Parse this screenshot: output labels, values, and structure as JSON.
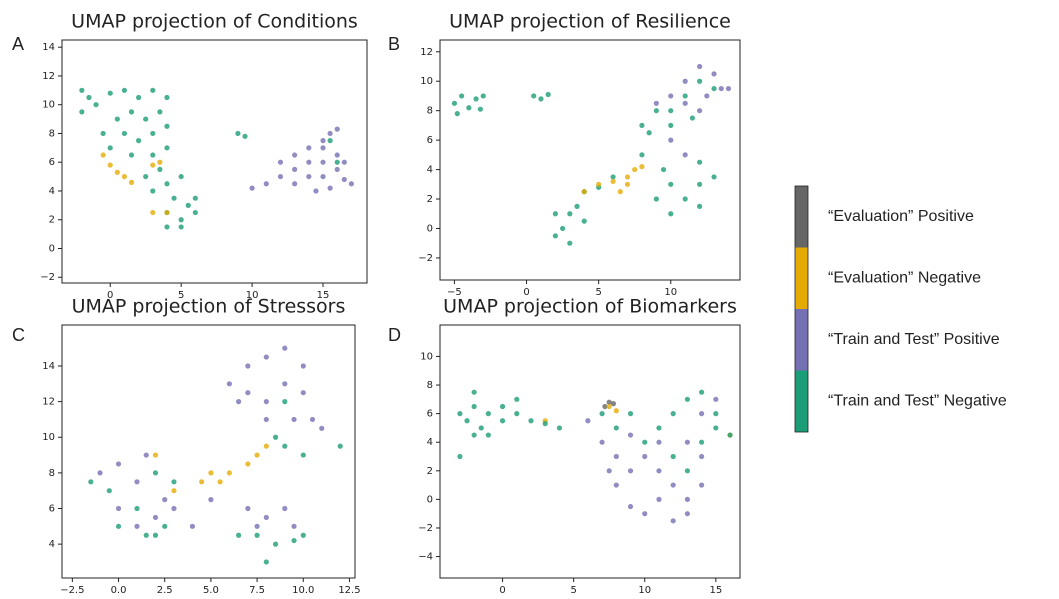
{
  "chart_data": [
    {
      "type": "scatter",
      "label": "A",
      "title": "UMAP projection of Conditions",
      "xlim": [
        -3.4,
        18.1
      ],
      "ylim": [
        -2.4,
        14.5
      ],
      "xticks": [
        0,
        5,
        10,
        15
      ],
      "yticks": [
        {
          "value": -2,
          "label": "−2"
        },
        0,
        2,
        4,
        6,
        8,
        10,
        12,
        14
      ],
      "series": [
        {
          "name": "“Train and Test” Negative",
          "color": "#1b9e77",
          "x": [
            -2,
            -1.5,
            -1,
            -2,
            0,
            1,
            2,
            3,
            4,
            0.5,
            1.5,
            2.5,
            3.5,
            -0.5,
            1,
            2,
            3,
            4,
            0,
            1.5,
            3,
            4,
            2.5,
            3.5,
            4,
            3,
            4.5,
            4,
            5,
            6,
            5.5,
            5,
            4,
            6,
            5,
            9,
            9.5,
            16,
            15.5
          ],
          "y": [
            11,
            10.5,
            10,
            9.5,
            10.8,
            11,
            10.5,
            11,
            10.5,
            9,
            9.5,
            9,
            9.5,
            8,
            8,
            7.5,
            8,
            8.5,
            7,
            6.5,
            6.5,
            7,
            5,
            5.5,
            4.5,
            4,
            3.5,
            2.5,
            2,
            2.5,
            3,
            1.5,
            1.5,
            3.5,
            5,
            8,
            7.8,
            6,
            7.5
          ]
        },
        {
          "name": "“Train and Test” Positive",
          "color": "#7570b3",
          "x": [
            10,
            11,
            12,
            12,
            13,
            13,
            14,
            14,
            14,
            15,
            15,
            15,
            15.5,
            16,
            16,
            16.5,
            16.5,
            15.5,
            14.5,
            13,
            16,
            15,
            17
          ],
          "y": [
            4.2,
            4.5,
            5,
            6,
            5.5,
            6.5,
            5,
            6,
            7,
            5,
            6,
            7,
            8,
            6.5,
            5.5,
            6,
            4.8,
            4.2,
            4,
            4.5,
            8.3,
            7.5,
            4.5
          ]
        },
        {
          "name": "“Evaluation” Negative",
          "color": "#e6ab02",
          "x": [
            -0.5,
            0,
            0.5,
            1,
            1.5,
            3,
            3.5,
            4,
            3
          ],
          "y": [
            6.5,
            5.8,
            5.3,
            5,
            4.6,
            5.8,
            6,
            2.5,
            2.5
          ]
        }
      ]
    },
    {
      "type": "scatter",
      "label": "B",
      "title": "UMAP projection of Resilience",
      "xlim": [
        -6.0,
        14.8
      ],
      "ylim": [
        -3.5,
        12.8
      ],
      "xticks": [
        {
          "value": -5,
          "label": "−5"
        },
        0,
        5,
        10
      ],
      "yticks": [
        {
          "value": -2,
          "label": "−2"
        },
        0,
        2,
        4,
        6,
        8,
        10,
        12
      ],
      "series": [
        {
          "name": "“Train and Test” Negative",
          "color": "#1b9e77",
          "x": [
            -5,
            -4.5,
            -4,
            -3.5,
            -3,
            -4.8,
            -3.2,
            0.5,
            1,
            1.5,
            2,
            2.5,
            3,
            3,
            2,
            4,
            3.5,
            4,
            5,
            6,
            8,
            8,
            8.5,
            9,
            10,
            10,
            11,
            11.5,
            12,
            13,
            9,
            10,
            11,
            12,
            10,
            12,
            13,
            9.5,
            12
          ],
          "y": [
            8.5,
            9,
            8.2,
            8.8,
            9,
            7.8,
            8.1,
            9,
            8.8,
            9.1,
            1,
            0,
            1,
            -1,
            -0.5,
            0.5,
            1.5,
            2.5,
            2.8,
            3.5,
            5,
            7,
            6.5,
            8,
            7,
            8,
            9,
            7.5,
            10,
            9.5,
            2,
            3,
            2,
            3,
            1,
            1.5,
            3.5,
            4,
            4.5
          ]
        },
        {
          "name": "“Train and Test” Positive",
          "color": "#7570b3",
          "x": [
            9,
            10,
            11,
            12,
            13,
            13.5,
            12.5,
            11,
            14,
            12,
            10,
            11
          ],
          "y": [
            8.5,
            9,
            10,
            11,
            10.5,
            9.5,
            9,
            8.5,
            9.5,
            8,
            6,
            5
          ]
        },
        {
          "name": "“Evaluation” Negative",
          "color": "#e6ab02",
          "x": [
            4,
            5,
            6,
            7,
            7.5,
            7,
            8,
            6.5
          ],
          "y": [
            2.5,
            3,
            3.2,
            3.5,
            4,
            3,
            4.2,
            2.5
          ]
        }
      ]
    },
    {
      "type": "scatter",
      "label": "C",
      "title": "UMAP projection of Stressors",
      "xlim": [
        -3.06,
        12.8
      ],
      "ylim": [
        2.1,
        16.3
      ],
      "xticks": [
        {
          "value": -2.5,
          "label": "−2.5"
        },
        {
          "value": 0,
          "label": "0.0"
        },
        2.5,
        {
          "value": 5,
          "label": "5.0"
        },
        7.5,
        {
          "value": 10,
          "label": "10.0"
        },
        12.5
      ],
      "yticks": [
        4,
        6,
        8,
        10,
        12,
        14
      ],
      "series": [
        {
          "name": "“Train and Test” Positive",
          "color": "#7570b3",
          "x": [
            6,
            7,
            8,
            9,
            10,
            9,
            7,
            6.5,
            8,
            10,
            10.5,
            9.5,
            11,
            8,
            -1,
            0,
            1,
            0,
            1,
            2,
            2.5,
            4,
            7,
            8,
            9,
            9.5,
            7.5,
            3,
            5,
            1.5
          ],
          "y": [
            13,
            14,
            14.5,
            15,
            14,
            13,
            12.5,
            12,
            12,
            12.5,
            11,
            11,
            10.5,
            11,
            8,
            8.5,
            7.5,
            6,
            5,
            5.5,
            6.5,
            5,
            6,
            5.5,
            6,
            5,
            5,
            6,
            6.5,
            9
          ]
        },
        {
          "name": "“Train and Test” Negative",
          "color": "#1b9e77",
          "x": [
            -1.5,
            -0.5,
            1,
            0,
            1.5,
            2,
            2.5,
            7.5,
            8.5,
            9.5,
            10,
            8,
            6.5,
            9,
            10,
            12,
            9,
            8.5,
            3,
            2
          ],
          "y": [
            7.5,
            7,
            6,
            5,
            4.5,
            4.5,
            5,
            4.5,
            4,
            4.2,
            4.5,
            3,
            4.5,
            9.5,
            9,
            9.5,
            12,
            10,
            7.5,
            8
          ]
        },
        {
          "name": "“Evaluation” Negative",
          "color": "#e6ab02",
          "x": [
            2,
            4.5,
            5,
            6,
            7,
            7.5,
            5.5,
            3,
            8
          ],
          "y": [
            9,
            7.5,
            8,
            8,
            8.5,
            9,
            7.5,
            7,
            9.5
          ]
        }
      ]
    },
    {
      "type": "scatter",
      "label": "D",
      "title": "UMAP projection of Biomarkers",
      "xlim": [
        -4.4,
        16.7
      ],
      "ylim": [
        -5.5,
        12.2
      ],
      "xticks": [
        0,
        5,
        10,
        15
      ],
      "yticks": [
        {
          "value": -4,
          "label": "−4"
        },
        {
          "value": -2,
          "label": "−2"
        },
        0,
        2,
        4,
        6,
        8,
        10
      ],
      "series": [
        {
          "name": "“Evaluation” Positive",
          "color": "#666666",
          "x": [
            7.2,
            7.5,
            7.8
          ],
          "y": [
            6.5,
            6.8,
            6.7
          ]
        },
        {
          "name": "“Evaluation” Negative",
          "color": "#e6ab02",
          "x": [
            7.5,
            8,
            3,
            16
          ],
          "y": [
            6.5,
            6.2,
            5.5,
            4.5
          ]
        },
        {
          "name": "“Train and Test” Positive",
          "color": "#7570b3",
          "x": [
            6,
            7,
            8,
            7.5,
            8,
            9,
            10,
            11,
            12,
            13,
            13,
            11,
            10,
            12,
            14,
            14,
            15,
            13,
            9,
            11,
            14,
            9
          ],
          "y": [
            5.5,
            4,
            3,
            2,
            1,
            2,
            3,
            2,
            1,
            0,
            -1,
            0,
            -1,
            -1.5,
            1,
            3,
            7,
            4,
            4.5,
            4,
            6,
            -0.5
          ]
        },
        {
          "name": "“Train and Test” Negative",
          "color": "#1b9e77",
          "x": [
            -3,
            -2.5,
            -2,
            -1.5,
            -1,
            0,
            0,
            1,
            1,
            -2,
            -1,
            -2,
            2,
            3,
            4,
            -3,
            7,
            8,
            9,
            11,
            12,
            13,
            14,
            15,
            14,
            13,
            12,
            15,
            16,
            10
          ],
          "y": [
            6,
            5.5,
            6.5,
            5,
            6,
            6.5,
            5.5,
            6,
            7,
            4.5,
            4.5,
            7.5,
            5.5,
            5.3,
            5,
            3,
            6,
            5,
            6,
            5,
            6,
            7,
            7.5,
            6,
            4,
            2,
            3,
            5,
            4.5,
            4
          ]
        }
      ]
    }
  ]
}
